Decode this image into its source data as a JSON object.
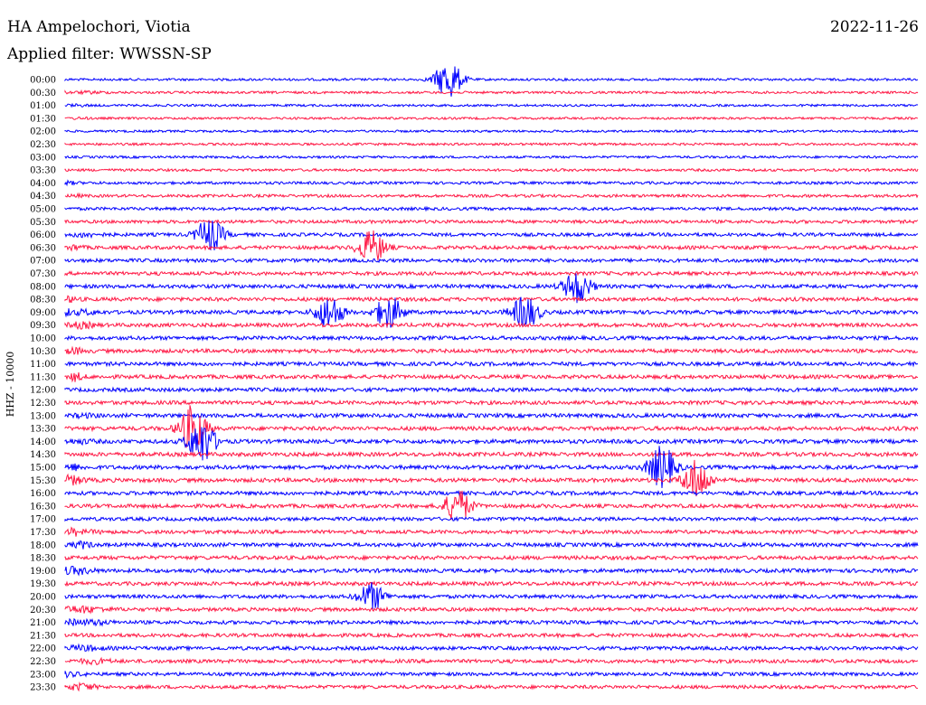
{
  "header": {
    "station": "HA Ampelochori, Viotia",
    "date": "2022-11-26",
    "filter_text": "Applied filter: WWSSN-SP"
  },
  "chart_data": {
    "type": "line",
    "title": "HA Ampelochori, Viotia",
    "ylabel": "HHZ - 10000",
    "xlabel": "",
    "colors": [
      "#0000ff",
      "#ff1744"
    ],
    "grid": false,
    "trace_labels": [
      "00:00",
      "00:30",
      "01:00",
      "01:30",
      "02:00",
      "02:30",
      "03:00",
      "03:30",
      "04:00",
      "04:30",
      "05:00",
      "05:30",
      "06:00",
      "06:30",
      "07:00",
      "07:30",
      "08:00",
      "08:30",
      "09:00",
      "09:30",
      "10:00",
      "10:30",
      "11:00",
      "11:30",
      "12:00",
      "12:30",
      "13:00",
      "13:30",
      "14:00",
      "14:30",
      "15:00",
      "15:30",
      "16:00",
      "16:30",
      "17:00",
      "17:30",
      "18:00",
      "18:30",
      "19:00",
      "19:30",
      "20:00",
      "20:30",
      "21:00",
      "21:30",
      "22:00",
      "22:30",
      "23:00",
      "23:30"
    ],
    "activity_level": [
      0.15,
      0.15,
      0.12,
      0.12,
      0.12,
      0.15,
      0.15,
      0.2,
      0.25,
      0.3,
      0.35,
      0.4,
      0.45,
      0.5,
      0.5,
      0.5,
      0.55,
      0.55,
      0.55,
      0.55,
      0.55,
      0.55,
      0.55,
      0.55,
      0.55,
      0.55,
      0.6,
      0.6,
      0.6,
      0.6,
      0.6,
      0.6,
      0.55,
      0.55,
      0.5,
      0.5,
      0.55,
      0.55,
      0.55,
      0.55,
      0.5,
      0.5,
      0.5,
      0.5,
      0.5,
      0.5,
      0.45,
      0.45
    ],
    "events": [
      {
        "trace": "00:00",
        "pos": 0.45,
        "amp": 1.2
      },
      {
        "trace": "06:00",
        "pos": 0.17,
        "amp": 1.0
      },
      {
        "trace": "06:30",
        "pos": 0.36,
        "amp": 1.0
      },
      {
        "trace": "08:00",
        "pos": 0.6,
        "amp": 1.0
      },
      {
        "trace": "09:00",
        "pos": 0.31,
        "amp": 1.0
      },
      {
        "trace": "09:00",
        "pos": 0.38,
        "amp": 1.0
      },
      {
        "trace": "09:00",
        "pos": 0.54,
        "amp": 1.0
      },
      {
        "trace": "13:30",
        "pos": 0.15,
        "amp": 1.4
      },
      {
        "trace": "14:00",
        "pos": 0.16,
        "amp": 1.4
      },
      {
        "trace": "15:00",
        "pos": 0.7,
        "amp": 1.3
      },
      {
        "trace": "15:30",
        "pos": 0.74,
        "amp": 1.2
      },
      {
        "trace": "16:30",
        "pos": 0.46,
        "amp": 1.0
      },
      {
        "trace": "20:00",
        "pos": 0.36,
        "amp": 0.8
      }
    ]
  }
}
